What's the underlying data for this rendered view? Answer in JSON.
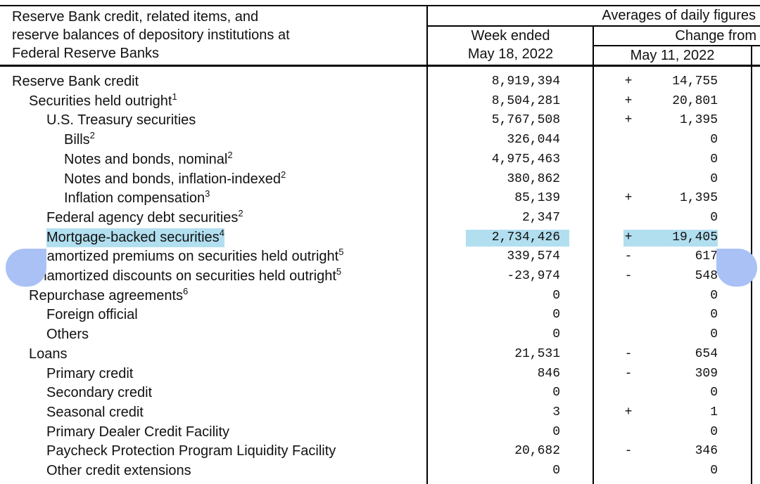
{
  "header": {
    "title_lines": [
      "Reserve Bank credit, related items, and",
      "reserve balances of depository institutions at",
      "Federal Reserve Banks"
    ],
    "group": "Averages of daily figures",
    "week_ended": "Week ended",
    "week_date": "May 18, 2022",
    "change_from": "Change from",
    "change_date": "May 11, 2022"
  },
  "highlight_color": "#b2dff0",
  "rows": [
    {
      "label": "Reserve Bank credit",
      "sup": "",
      "level": 0,
      "value": "8,919,394",
      "sign": "+",
      "change": "14,755"
    },
    {
      "label": "Securities held outright",
      "sup": "1",
      "level": 1,
      "value": "8,504,281",
      "sign": "+",
      "change": "20,801"
    },
    {
      "label": "U.S. Treasury securities",
      "sup": "",
      "level": 2,
      "value": "5,767,508",
      "sign": "+",
      "change": "1,395"
    },
    {
      "label": "Bills",
      "sup": "2",
      "level": 3,
      "value": "326,044",
      "sign": "",
      "change": "0"
    },
    {
      "label": "Notes and bonds, nominal",
      "sup": "2",
      "level": 3,
      "value": "4,975,463",
      "sign": "",
      "change": "0"
    },
    {
      "label": "Notes and bonds, inflation-indexed",
      "sup": "2",
      "level": 3,
      "value": "380,862",
      "sign": "",
      "change": "0"
    },
    {
      "label": "Inflation compensation",
      "sup": "3",
      "level": 3,
      "value": "85,139",
      "sign": "+",
      "change": "1,395"
    },
    {
      "label": "Federal agency debt securities",
      "sup": "2",
      "level": 2,
      "value": "2,347",
      "sign": "",
      "change": "0"
    },
    {
      "label": "Mortgage-backed securities",
      "sup": "4",
      "level": 2,
      "value": "2,734,426",
      "sign": "+",
      "change": "19,405",
      "selected": true
    },
    {
      "label": "Unamortized premiums on securities held outright",
      "sup": "5",
      "level": 1,
      "value": "339,574",
      "sign": "-",
      "change": "617"
    },
    {
      "label": "Unamortized discounts on securities held outright",
      "sup": "5",
      "level": 1,
      "value": "-23,974",
      "sign": "-",
      "change": "548"
    },
    {
      "label": "Repurchase agreements",
      "sup": "6",
      "level": 1,
      "value": "0",
      "sign": "",
      "change": "0"
    },
    {
      "label": "Foreign official",
      "sup": "",
      "level": 2,
      "value": "0",
      "sign": "",
      "change": "0"
    },
    {
      "label": "Others",
      "sup": "",
      "level": 2,
      "value": "0",
      "sign": "",
      "change": "0"
    },
    {
      "label": "Loans",
      "sup": "",
      "level": 1,
      "value": "21,531",
      "sign": "-",
      "change": "654"
    },
    {
      "label": "Primary credit",
      "sup": "",
      "level": 2,
      "value": "846",
      "sign": "-",
      "change": "309"
    },
    {
      "label": "Secondary credit",
      "sup": "",
      "level": 2,
      "value": "0",
      "sign": "",
      "change": "0"
    },
    {
      "label": "Seasonal credit",
      "sup": "",
      "level": 2,
      "value": "3",
      "sign": "+",
      "change": "1"
    },
    {
      "label": "Primary Dealer Credit Facility",
      "sup": "",
      "level": 2,
      "value": "0",
      "sign": "",
      "change": "0"
    },
    {
      "label": "Paycheck Protection Program Liquidity Facility",
      "sup": "",
      "level": 2,
      "value": "20,682",
      "sign": "-",
      "change": "346"
    },
    {
      "label": "Other credit extensions",
      "sup": "",
      "level": 2,
      "value": "0",
      "sign": "",
      "change": "0"
    }
  ]
}
